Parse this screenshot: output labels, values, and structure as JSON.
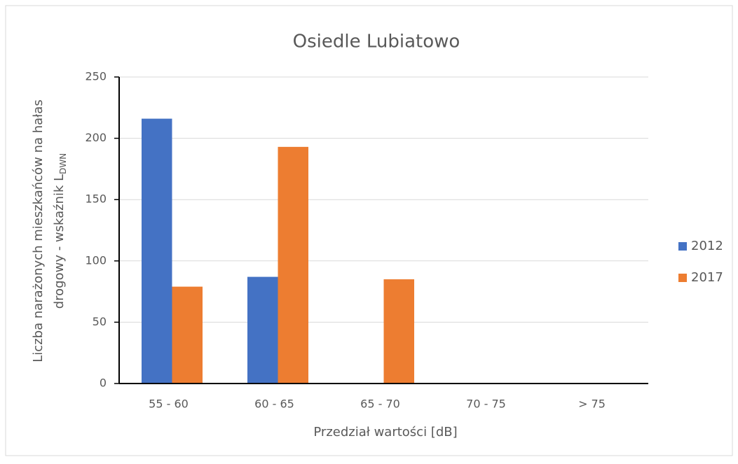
{
  "chart_data": {
    "type": "bar",
    "title": "Osiedle Lubiatowo",
    "xlabel": "Przedział wartości [dB]",
    "ylabel": [
      "Liczba narażonych mieszkańców na hałas",
      "drogowy - wskaźnik L"
    ],
    "ylabel_subscript": "DWN",
    "categories": [
      "55 - 60",
      "60 - 65",
      "65 - 70",
      "70 - 75",
      "> 75"
    ],
    "series": [
      {
        "name": "2012",
        "color": "#4472c4",
        "values": [
          216,
          87,
          0,
          0,
          0
        ]
      },
      {
        "name": "2017",
        "color": "#ed7d31",
        "values": [
          79,
          193,
          85,
          0,
          0
        ]
      }
    ],
    "ylim": [
      0,
      250
    ],
    "yticks": [
      0,
      50,
      100,
      150,
      200,
      250
    ],
    "grid": true,
    "legend": "right"
  }
}
